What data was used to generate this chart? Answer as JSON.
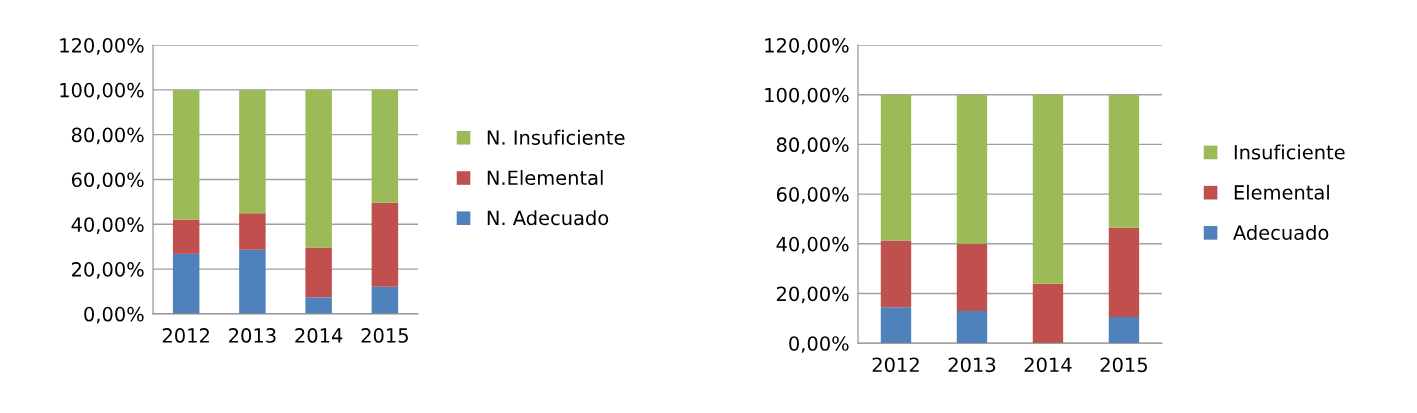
{
  "chart_data": [
    {
      "type": "bar",
      "stacked": true,
      "categories": [
        "2012",
        "2013",
        "2014",
        "2015"
      ],
      "series": [
        {
          "name": "N. Adecuado",
          "color": "#4f81bd",
          "values": [
            26.8,
            28.6,
            7.4,
            12.1
          ]
        },
        {
          "name": "N.Elemental",
          "color": "#c0504d",
          "values": [
            15.3,
            16.3,
            22.2,
            37.5
          ]
        },
        {
          "name": "N. Insuficiente",
          "color": "#9bbb59",
          "values": [
            57.9,
            55.1,
            70.4,
            50.4
          ]
        }
      ],
      "ylim": [
        0,
        120
      ],
      "yticks": [
        {
          "value": 0,
          "label": "0,00%"
        },
        {
          "value": 20,
          "label": "20,00%"
        },
        {
          "value": 40,
          "label": "40,00%"
        },
        {
          "value": 60,
          "label": "60,00%"
        },
        {
          "value": 80,
          "label": "80,00%"
        },
        {
          "value": 100,
          "label": "100,00%"
        },
        {
          "value": 120,
          "label": "120,00%"
        }
      ],
      "grid": "y",
      "legend": "right"
    },
    {
      "type": "bar",
      "stacked": true,
      "categories": [
        "2012",
        "2013",
        "2014",
        "2015"
      ],
      "series": [
        {
          "name": "Adecuado",
          "color": "#4f81bd",
          "values": [
            14.5,
            13.0,
            0,
            10.5
          ]
        },
        {
          "name": "Elemental",
          "color": "#c0504d",
          "values": [
            26.8,
            27.0,
            23.9,
            36.1
          ]
        },
        {
          "name": "Insuficiente",
          "color": "#9bbb59",
          "values": [
            58.7,
            60.0,
            76.1,
            53.4
          ]
        }
      ],
      "ylim": [
        0,
        120
      ],
      "yticks": [
        {
          "value": 0,
          "label": "0,00%"
        },
        {
          "value": 20,
          "label": "20,00%"
        },
        {
          "value": 40,
          "label": "40,00%"
        },
        {
          "value": 60,
          "label": "60,00%"
        },
        {
          "value": 80,
          "label": "80,00%"
        },
        {
          "value": 100,
          "label": "100,00%"
        },
        {
          "value": 120,
          "label": "120,00%"
        }
      ],
      "grid": "y",
      "legend": "right"
    }
  ]
}
